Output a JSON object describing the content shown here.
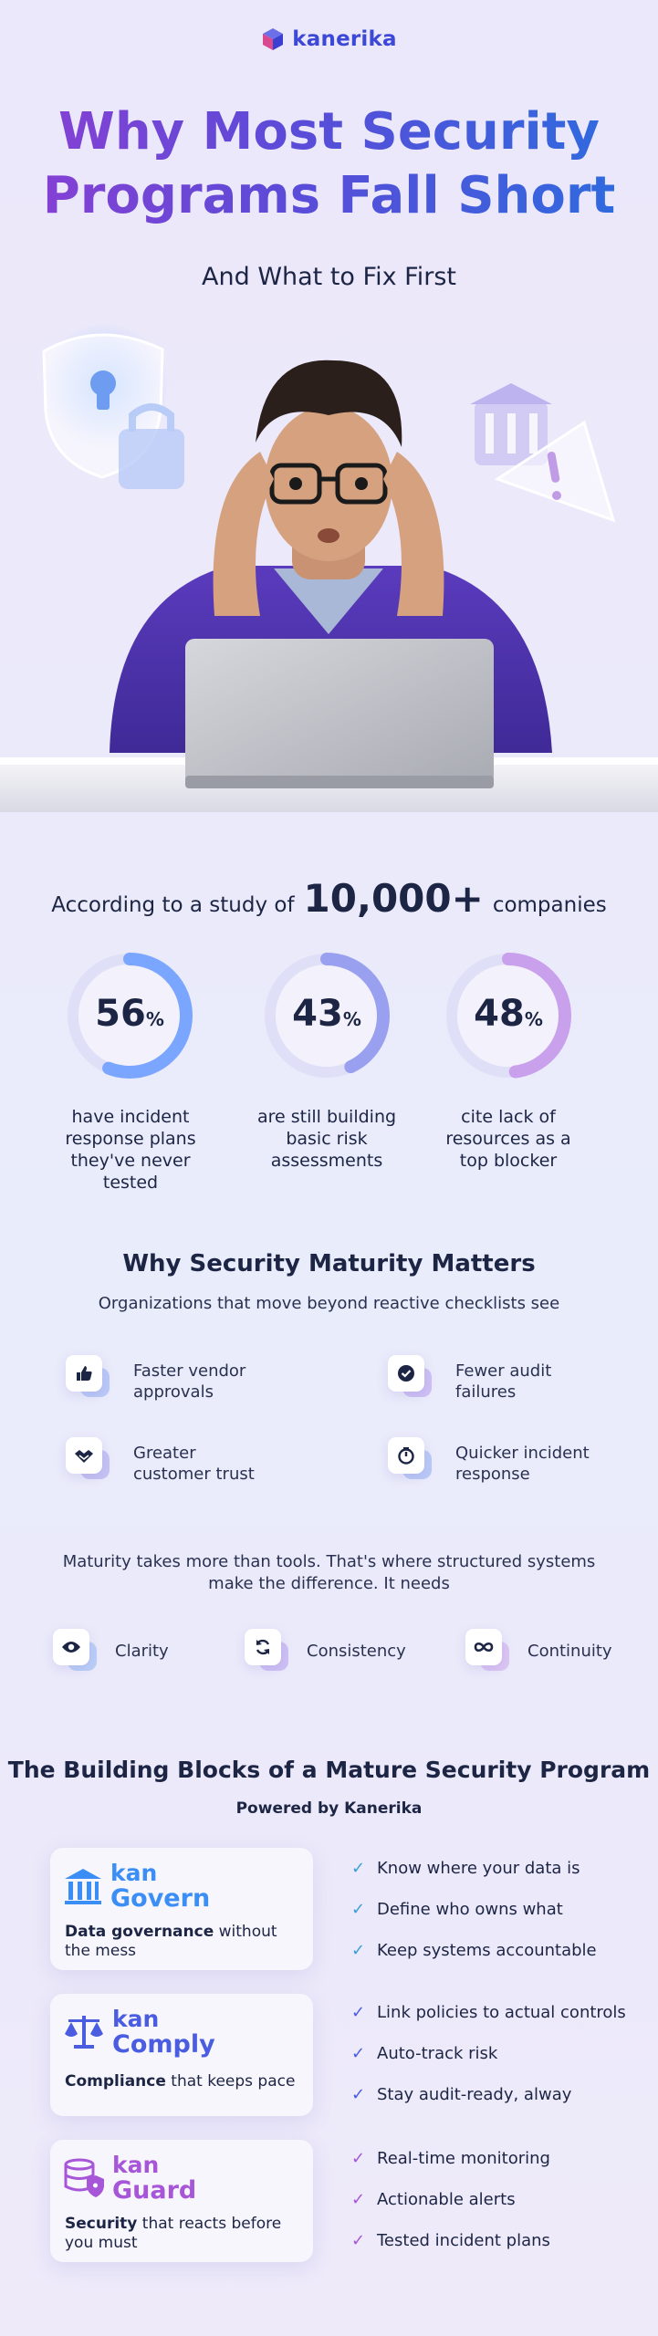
{
  "brand": {
    "name": "kanerika"
  },
  "hero": {
    "title_line1": "Why Most Security",
    "title_line2": "Programs Fall Short",
    "subtitle": "And What to Fix First"
  },
  "study": {
    "prefix": "According to a study of",
    "count": "10,000+",
    "suffix": "companies",
    "stats": [
      {
        "value": "56",
        "unit": "%",
        "fraction": 0.56,
        "label_lines": [
          "have incident",
          "response plans",
          "they've never tested"
        ],
        "color": "#7aa6ff"
      },
      {
        "value": "43",
        "unit": "%",
        "fraction": 0.43,
        "label_lines": [
          "are still building",
          "basic risk",
          "assessments"
        ],
        "color": "#9aa0f0"
      },
      {
        "value": "48",
        "unit": "%",
        "fraction": 0.48,
        "label_lines": [
          "cite lack of",
          "resources as a",
          "top blocker"
        ],
        "color": "#c9a0ec"
      }
    ]
  },
  "maturity": {
    "title": "Why Security Maturity Matters",
    "subtitle": "Organizations that move beyond reactive checklists see",
    "features": [
      {
        "icon": "thumbs-up-icon",
        "line1": "Faster vendor",
        "line2": "approvals",
        "accent": "#a9bdf5"
      },
      {
        "icon": "check-badge-icon",
        "line1": "Fewer audit",
        "line2": "failures",
        "accent": "#c4b2f2"
      },
      {
        "icon": "handshake-icon",
        "line1": "Greater",
        "line2": "customer trust",
        "accent": "#b8b5f2"
      },
      {
        "icon": "timer-icon",
        "line1": "Quicker incident",
        "line2": "response",
        "accent": "#a9bdf5"
      }
    ],
    "needs_line1": "Maturity takes more than tools. That's where structured systems",
    "needs_line2": "make the difference. It needs",
    "needs": [
      {
        "icon": "eye-icon",
        "label": "Clarity",
        "accent": "#a9c4f5"
      },
      {
        "icon": "sync-icon",
        "label": "Consistency",
        "accent": "#c4b2f2"
      },
      {
        "icon": "infinity-icon",
        "label": "Continuity",
        "accent": "#d6b8f0"
      }
    ]
  },
  "blocks": {
    "title": "The Building Blocks of a Mature Security Program",
    "subtitle": "Powered by Kanerika",
    "products": [
      {
        "icon": "pillars-icon",
        "prefix": "kan",
        "name": "Govern",
        "color": "#3b8ef5",
        "desc_bold": "Data governance",
        "desc_rest": " without the mess",
        "checks": [
          "Know where your data is",
          "Define who owns what",
          "Keep systems accountable"
        ],
        "check_color": "#3aa0d8"
      },
      {
        "icon": "scales-icon",
        "prefix": "kan",
        "name": "Comply",
        "color": "#4a5ce0",
        "desc_bold": "Compliance",
        "desc_rest": " that keeps pace",
        "checks": [
          "Link policies to actual controls",
          "Auto-track risk",
          "Stay audit-ready, alway"
        ],
        "check_color": "#4a5ce0"
      },
      {
        "icon": "database-shield-icon",
        "prefix": "kan",
        "name": "Guard",
        "color": "#a656d6",
        "desc_bold": "Security",
        "desc_rest": " that reacts before you must",
        "checks": [
          "Real-time monitoring",
          "Actionable alerts",
          "Tested incident plans"
        ],
        "check_color": "#a656d6"
      }
    ]
  }
}
